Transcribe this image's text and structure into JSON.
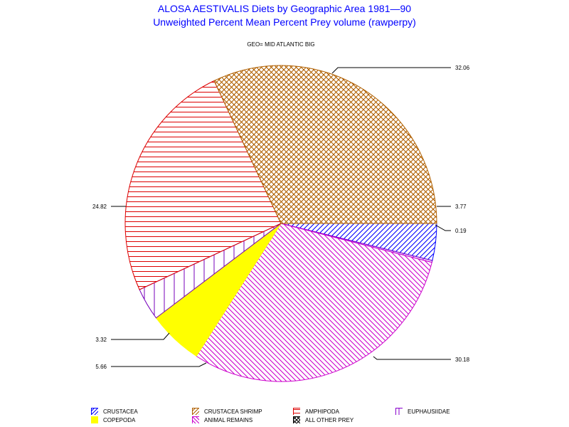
{
  "title": "ALOSA AESTIVALIS Diets by Geographic Area 1981—90",
  "subtitle": "Unweighted Percent Mean Percent Prey  volume (rawperpy)",
  "group_label": "GEO= MID ATLANTIC BIG",
  "chart_data": {
    "type": "pie",
    "title": "ALOSA AESTIVALIS Diets by Geographic Area 1981—90",
    "subtitle": "Unweighted Percent Mean Percent Prey  volume (rawperpy)",
    "group": "GEO= MID ATLANTIC BIG",
    "slices": [
      {
        "name": "CRUSTACEA",
        "value": 3.77,
        "label": "3.77",
        "color": "#0000ff",
        "pattern": "diag-up"
      },
      {
        "name": "EUPHAUSIIDAE",
        "value": 0.19,
        "label": "0.19",
        "color": "#8800cc",
        "pattern": "vertical"
      },
      {
        "name": "ANIMAL REMAINS",
        "value": 30.18,
        "label": "30.18",
        "color": "#cc00cc",
        "pattern": "diag-down"
      },
      {
        "name": "COPEPODA",
        "value": 5.66,
        "label": "5.66",
        "color": "#ffff00",
        "pattern": "solid"
      },
      {
        "name": "EUPHAUSIIDAE",
        "value": 3.32,
        "label": "3.32",
        "color": "#7700bb",
        "pattern": "vertical"
      },
      {
        "name": "AMPHIPODA",
        "value": 24.82,
        "label": "24.82",
        "color": "#dd0000",
        "pattern": "horizontal"
      },
      {
        "name": "CRUSTACEA SHRIMP",
        "value": 32.06,
        "label": "32.06",
        "color": "#b06000",
        "pattern": "crosshatch"
      }
    ],
    "legend_position": "bottom",
    "legend": [
      {
        "label": "CRUSTACEA",
        "color": "#0000ff",
        "pattern": "diag-up"
      },
      {
        "label": "CRUSTACEA SHRIMP",
        "color": "#b06000",
        "pattern": "diag-up"
      },
      {
        "label": "AMPHIPODA",
        "color": "#dd0000",
        "pattern": "horizontal"
      },
      {
        "label": "EUPHAUSIIDAE",
        "color": "#8800cc",
        "pattern": "vertical"
      },
      {
        "label": "COPEPODA",
        "color": "#ffff00",
        "pattern": "solid"
      },
      {
        "label": "ANIMAL REMAINS",
        "color": "#cc00cc",
        "pattern": "diag-down"
      },
      {
        "label": "ALL OTHER PREY",
        "color": "#000000",
        "pattern": "crosshatch"
      }
    ]
  }
}
